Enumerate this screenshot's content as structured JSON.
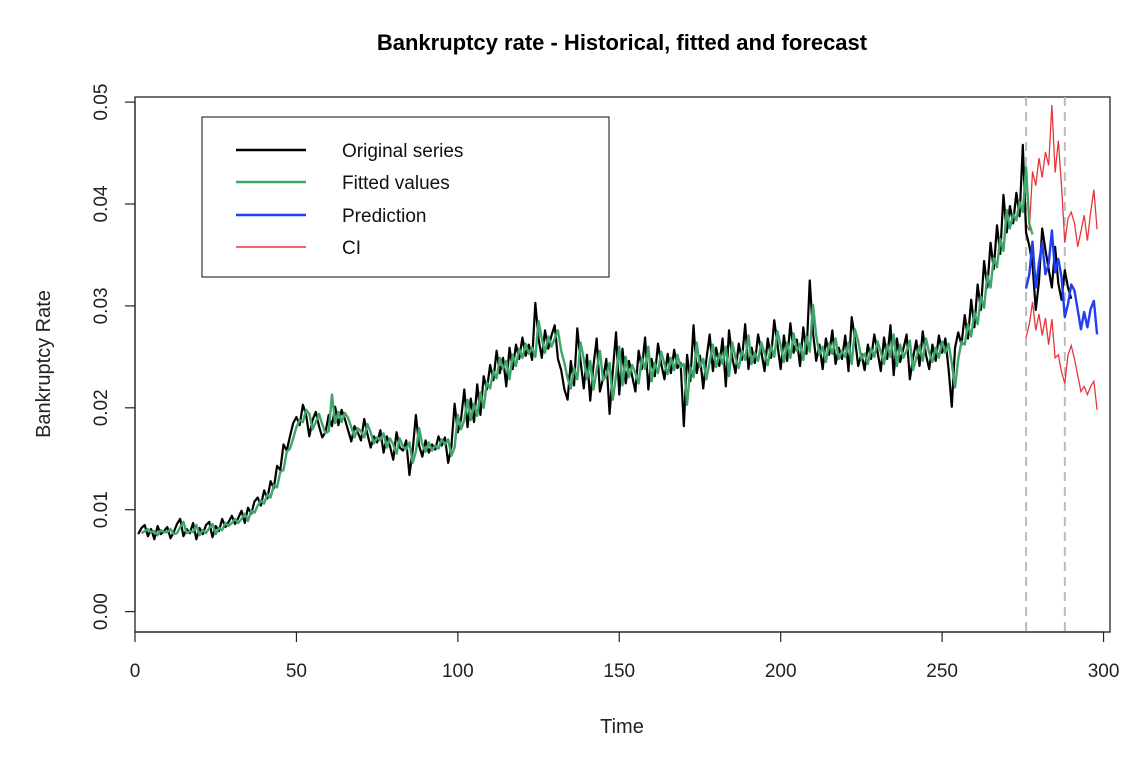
{
  "chart_data": {
    "type": "line",
    "title": "Bankruptcy rate - Historical, fitted and forecast",
    "xlabel": "Time",
    "ylabel": "Bankruptcy Rate",
    "xlim": [
      0,
      302
    ],
    "ylim": [
      -0.002,
      0.0505
    ],
    "x_ticks": [
      0,
      50,
      100,
      150,
      200,
      250,
      300
    ],
    "y_ticks": [
      0.0,
      0.01,
      0.02,
      0.03,
      0.04,
      0.05
    ],
    "y_tick_labels": [
      "0.00",
      "0.01",
      "0.02",
      "0.03",
      "0.04",
      "0.05"
    ],
    "grid": false,
    "legend_position": "top-left",
    "vlines": [
      276,
      288
    ],
    "colors": {
      "original": "#000000",
      "fitted": "#3fa66a",
      "prediction": "#1f3ff0",
      "ci": "#e8353a",
      "vline": "#bbbbbb"
    },
    "series": [
      {
        "name": "Original series",
        "key": "original",
        "x_start": 1,
        "values": [
          0.0076,
          0.0082,
          0.0085,
          0.0074,
          0.0081,
          0.0071,
          0.0084,
          0.0076,
          0.0079,
          0.0083,
          0.0072,
          0.0078,
          0.0086,
          0.0091,
          0.0074,
          0.0081,
          0.0077,
          0.0087,
          0.0071,
          0.0082,
          0.0076,
          0.0085,
          0.0088,
          0.0073,
          0.0084,
          0.0079,
          0.0091,
          0.0083,
          0.0088,
          0.0094,
          0.0086,
          0.0092,
          0.0099,
          0.0087,
          0.0102,
          0.0096,
          0.0108,
          0.0112,
          0.0104,
          0.0119,
          0.0111,
          0.0128,
          0.0121,
          0.0143,
          0.0139,
          0.0164,
          0.0158,
          0.0172,
          0.0185,
          0.0191,
          0.0183,
          0.0203,
          0.0193,
          0.0172,
          0.0188,
          0.0196,
          0.0182,
          0.0171,
          0.0176,
          0.0193,
          0.0182,
          0.0201,
          0.0183,
          0.0198,
          0.0189,
          0.0178,
          0.0167,
          0.0182,
          0.0176,
          0.0168,
          0.0189,
          0.0174,
          0.0161,
          0.0172,
          0.0166,
          0.0178,
          0.0156,
          0.0172,
          0.0162,
          0.0149,
          0.0176,
          0.0161,
          0.0158,
          0.0168,
          0.0134,
          0.0158,
          0.0193,
          0.0163,
          0.0152,
          0.0168,
          0.0156,
          0.0164,
          0.0159,
          0.0172,
          0.0163,
          0.0171,
          0.0146,
          0.0162,
          0.0204,
          0.0176,
          0.0189,
          0.0218,
          0.0181,
          0.0209,
          0.0186,
          0.0223,
          0.0193,
          0.0231,
          0.0218,
          0.0242,
          0.0227,
          0.0256,
          0.0234,
          0.0249,
          0.0221,
          0.0259,
          0.0238,
          0.0262,
          0.0248,
          0.0269,
          0.0251,
          0.0262,
          0.0247,
          0.0303,
          0.0268,
          0.0249,
          0.0276,
          0.0258,
          0.0271,
          0.0281,
          0.0248,
          0.0237,
          0.0218,
          0.0208,
          0.0246,
          0.0222,
          0.0278,
          0.0246,
          0.0219,
          0.0252,
          0.0207,
          0.0241,
          0.0268,
          0.0216,
          0.0229,
          0.0248,
          0.0194,
          0.0236,
          0.0274,
          0.0213,
          0.0258,
          0.0224,
          0.0246,
          0.0231,
          0.0216,
          0.0256,
          0.0238,
          0.0269,
          0.0218,
          0.0248,
          0.0231,
          0.0263,
          0.0243,
          0.0228,
          0.0253,
          0.0234,
          0.0257,
          0.0239,
          0.0244,
          0.0182,
          0.0252,
          0.0226,
          0.0281,
          0.0234,
          0.0251,
          0.0219,
          0.0248,
          0.0272,
          0.0236,
          0.0259,
          0.0241,
          0.0268,
          0.0221,
          0.0276,
          0.0249,
          0.0234,
          0.0263,
          0.0247,
          0.0282,
          0.0238,
          0.0259,
          0.0244,
          0.0272,
          0.0255,
          0.0236,
          0.0268,
          0.0249,
          0.0286,
          0.0262,
          0.0238,
          0.0271,
          0.0246,
          0.0283,
          0.0254,
          0.0267,
          0.0241,
          0.0279,
          0.0253,
          0.0325,
          0.0274,
          0.0246,
          0.0262,
          0.0238,
          0.0268,
          0.0252,
          0.0276,
          0.0243,
          0.0259,
          0.0248,
          0.0271,
          0.0236,
          0.0289,
          0.0268,
          0.0241,
          0.0253,
          0.0237,
          0.0262,
          0.0248,
          0.0272,
          0.0255,
          0.0236,
          0.0269,
          0.0248,
          0.0281,
          0.0232,
          0.0268,
          0.0245,
          0.0258,
          0.0272,
          0.0228,
          0.0249,
          0.0266,
          0.0241,
          0.0275,
          0.0252,
          0.0238,
          0.0262,
          0.0246,
          0.0271,
          0.0254,
          0.0268,
          0.0238,
          0.0201,
          0.0259,
          0.0274,
          0.0262,
          0.0291,
          0.0268,
          0.0306,
          0.0279,
          0.0321,
          0.0296,
          0.0344,
          0.0318,
          0.0362,
          0.0336,
          0.0379,
          0.0351,
          0.0409,
          0.0372,
          0.0398,
          0.0381,
          0.0411,
          0.0388,
          0.0458,
          0.0372,
          0.0359,
          0.0341,
          0.0296,
          0.0324,
          0.0376,
          0.0355,
          0.0336,
          0.0318,
          0.0358,
          0.0322,
          0.0306,
          0.0335,
          0.0318,
          0.0307
        ]
      },
      {
        "name": "Fitted values",
        "key": "fitted",
        "x_start": 2,
        "values": [
          0.0077,
          0.0079,
          0.0081,
          0.0078,
          0.0079,
          0.0075,
          0.008,
          0.0078,
          0.0078,
          0.0081,
          0.0076,
          0.0077,
          0.0083,
          0.0088,
          0.0077,
          0.0079,
          0.0078,
          0.0085,
          0.0075,
          0.008,
          0.0077,
          0.0082,
          0.0086,
          0.0076,
          0.0082,
          0.008,
          0.0087,
          0.0084,
          0.0087,
          0.0091,
          0.0087,
          0.0091,
          0.0096,
          0.0089,
          0.0099,
          0.0097,
          0.0104,
          0.0109,
          0.0106,
          0.0115,
          0.0112,
          0.0124,
          0.0122,
          0.0137,
          0.0139,
          0.0157,
          0.016,
          0.017,
          0.0181,
          0.0188,
          0.0186,
          0.0198,
          0.0194,
          0.0179,
          0.0186,
          0.0194,
          0.0184,
          0.0175,
          0.0177,
          0.0213,
          0.0185,
          0.0196,
          0.0186,
          0.0195,
          0.019,
          0.0181,
          0.0171,
          0.018,
          0.0177,
          0.0171,
          0.0184,
          0.0176,
          0.0165,
          0.0171,
          0.0168,
          0.0175,
          0.0161,
          0.017,
          0.0164,
          0.0155,
          0.017,
          0.0162,
          0.0159,
          0.0166,
          0.0146,
          0.0157,
          0.018,
          0.0164,
          0.0157,
          0.0166,
          0.0158,
          0.0163,
          0.016,
          0.0169,
          0.0164,
          0.0169,
          0.0153,
          0.0161,
          0.0193,
          0.0179,
          0.0188,
          0.0208,
          0.0188,
          0.0204,
          0.0192,
          0.0215,
          0.02,
          0.0225,
          0.0219,
          0.0236,
          0.0229,
          0.0249,
          0.0238,
          0.0246,
          0.0228,
          0.0252,
          0.0241,
          0.0258,
          0.0249,
          0.0263,
          0.0253,
          0.0259,
          0.025,
          0.0285,
          0.0268,
          0.0254,
          0.027,
          0.026,
          0.0268,
          0.0276,
          0.0256,
          0.0244,
          0.0229,
          0.0219,
          0.0239,
          0.0228,
          0.0264,
          0.0248,
          0.0228,
          0.0246,
          0.0218,
          0.0237,
          0.0256,
          0.0227,
          0.0232,
          0.0244,
          0.0208,
          0.0232,
          0.026,
          0.0222,
          0.025,
          0.023,
          0.0242,
          0.0234,
          0.0224,
          0.0249,
          0.0238,
          0.026,
          0.0226,
          0.0244,
          0.0234,
          0.0255,
          0.0243,
          0.0233,
          0.0249,
          0.0237,
          0.0252,
          0.024,
          0.0243,
          0.0203,
          0.024,
          0.023,
          0.0264,
          0.024,
          0.0248,
          0.0228,
          0.0245,
          0.0262,
          0.024,
          0.0253,
          0.0243,
          0.026,
          0.0231,
          0.0264,
          0.0249,
          0.0239,
          0.0256,
          0.0247,
          0.0271,
          0.0243,
          0.0254,
          0.0246,
          0.0264,
          0.0254,
          0.0242,
          0.0261,
          0.025,
          0.0275,
          0.0261,
          0.0245,
          0.0264,
          0.0249,
          0.0273,
          0.0256,
          0.0263,
          0.0247,
          0.027,
          0.0255,
          0.0301,
          0.0271,
          0.0252,
          0.026,
          0.0245,
          0.0263,
          0.0253,
          0.0268,
          0.0248,
          0.0256,
          0.025,
          0.0264,
          0.0243,
          0.0277,
          0.0266,
          0.0248,
          0.0253,
          0.0243,
          0.0258,
          0.025,
          0.0265,
          0.0255,
          0.0243,
          0.0262,
          0.025,
          0.0272,
          0.0241,
          0.0262,
          0.0249,
          0.0256,
          0.0266,
          0.0237,
          0.0249,
          0.0261,
          0.0246,
          0.0268,
          0.0254,
          0.0245,
          0.0259,
          0.0249,
          0.0265,
          0.0254,
          0.0263,
          0.0244,
          0.022,
          0.0248,
          0.0265,
          0.0262,
          0.0282,
          0.027,
          0.0294,
          0.0282,
          0.0309,
          0.0298,
          0.033,
          0.0318,
          0.0347,
          0.0338,
          0.0366,
          0.0354,
          0.0394,
          0.0376,
          0.039,
          0.0384,
          0.0402,
          0.0392,
          0.0436,
          0.0381,
          0.037
        ]
      },
      {
        "name": "Prediction",
        "key": "prediction",
        "x_start": 276,
        "values": [
          0.0317,
          0.0331,
          0.0363,
          0.0318,
          0.0342,
          0.0362,
          0.0331,
          0.0341,
          0.0374,
          0.0333,
          0.0346,
          0.0328,
          0.0289,
          0.0302,
          0.0321,
          0.0315,
          0.0296,
          0.0277,
          0.0294,
          0.0279,
          0.0297,
          0.0305,
          0.0272
        ]
      },
      {
        "name": "CI",
        "key": "ci",
        "x_start": 276,
        "upper": [
          0.0381,
          0.0374,
          0.0432,
          0.0418,
          0.0445,
          0.0426,
          0.0451,
          0.0438,
          0.0497,
          0.0431,
          0.0462,
          0.0417,
          0.0362,
          0.0386,
          0.0392,
          0.0381,
          0.0358,
          0.0373,
          0.0389,
          0.0364,
          0.0392,
          0.0414,
          0.0375
        ],
        "lower": [
          0.0269,
          0.0282,
          0.0304,
          0.0276,
          0.0292,
          0.0271,
          0.0288,
          0.0262,
          0.0287,
          0.0249,
          0.0252,
          0.0235,
          0.0224,
          0.0252,
          0.0261,
          0.0248,
          0.0232,
          0.0216,
          0.0221,
          0.0213,
          0.0221,
          0.0226,
          0.0198
        ]
      }
    ]
  }
}
